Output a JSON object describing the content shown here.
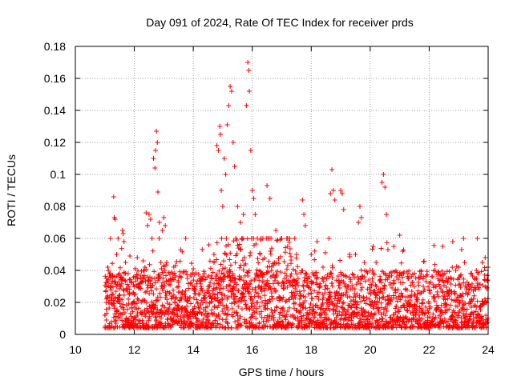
{
  "chart_data": {
    "type": "scatter",
    "title": "Day 091 of 2024, Rate Of TEC Index for receiver prds",
    "xlabel": "GPS time / hours",
    "ylabel": "ROTI / TECUs",
    "xlim": [
      10,
      24
    ],
    "ylim": [
      0,
      0.18
    ],
    "xticks": [
      10,
      12,
      14,
      16,
      18,
      20,
      22,
      24
    ],
    "yticks": [
      0,
      0.02,
      0.04,
      0.06,
      0.08,
      0.1,
      0.12,
      0.14,
      0.16,
      0.18
    ],
    "xtick_labels": [
      "10",
      "12",
      "14",
      "16",
      "18",
      "20",
      "22",
      "24"
    ],
    "ytick_labels": [
      "0",
      "0.02",
      "0.04",
      "0.06",
      "0.08",
      "0.1",
      "0.12",
      "0.14",
      "0.16",
      "0.18"
    ],
    "grid": true,
    "marker": "+",
    "marker_color": "#ff0000",
    "series": [
      {
        "name": "ROTI",
        "note": "dense scatter from 11.0 to 24.0 h; base band mostly 0.005-0.04, notable peaks listed",
        "points": [
          [
            11.0,
            0.012
          ],
          [
            11.05,
            0.035
          ],
          [
            11.1,
            0.042
          ],
          [
            11.15,
            0.02
          ],
          [
            11.2,
            0.03
          ],
          [
            11.3,
            0.086
          ],
          [
            11.32,
            0.073
          ],
          [
            11.35,
            0.072
          ],
          [
            11.4,
            0.05
          ],
          [
            11.5,
            0.038
          ],
          [
            11.6,
            0.065
          ],
          [
            11.62,
            0.063
          ],
          [
            11.65,
            0.058
          ],
          [
            11.7,
            0.045
          ],
          [
            11.8,
            0.03
          ],
          [
            12.0,
            0.025
          ],
          [
            12.1,
            0.048
          ],
          [
            12.2,
            0.032
          ],
          [
            12.3,
            0.046
          ],
          [
            12.4,
            0.076
          ],
          [
            12.45,
            0.068
          ],
          [
            12.5,
            0.075
          ],
          [
            12.55,
            0.072
          ],
          [
            12.6,
            0.06
          ],
          [
            12.65,
            0.11
          ],
          [
            12.7,
            0.104
          ],
          [
            12.72,
            0.115
          ],
          [
            12.75,
            0.127
          ],
          [
            12.78,
            0.12
          ],
          [
            12.8,
            0.089
          ],
          [
            12.85,
            0.07
          ],
          [
            12.9,
            0.045
          ],
          [
            12.95,
            0.065
          ],
          [
            13.0,
            0.073
          ],
          [
            13.05,
            0.068
          ],
          [
            13.1,
            0.045
          ],
          [
            13.3,
            0.035
          ],
          [
            13.5,
            0.03
          ],
          [
            13.8,
            0.035
          ],
          [
            14.0,
            0.041
          ],
          [
            14.2,
            0.025
          ],
          [
            14.5,
            0.03
          ],
          [
            14.7,
            0.05
          ],
          [
            14.8,
            0.118
          ],
          [
            14.85,
            0.115
          ],
          [
            14.9,
            0.13
          ],
          [
            14.92,
            0.125
          ],
          [
            14.95,
            0.09
          ],
          [
            15.0,
            0.08
          ],
          [
            15.05,
            0.11
          ],
          [
            15.1,
            0.1
          ],
          [
            15.15,
            0.131
          ],
          [
            15.2,
            0.143
          ],
          [
            15.25,
            0.155
          ],
          [
            15.3,
            0.152
          ],
          [
            15.35,
            0.12
          ],
          [
            15.4,
            0.105
          ],
          [
            15.5,
            0.08
          ],
          [
            15.6,
            0.07
          ],
          [
            15.7,
            0.075
          ],
          [
            15.8,
            0.143
          ],
          [
            15.85,
            0.17
          ],
          [
            15.88,
            0.165
          ],
          [
            15.9,
            0.152
          ],
          [
            15.95,
            0.115
          ],
          [
            16.0,
            0.09
          ],
          [
            16.05,
            0.085
          ],
          [
            16.1,
            0.075
          ],
          [
            16.3,
            0.06
          ],
          [
            16.5,
            0.093
          ],
          [
            16.6,
            0.085
          ],
          [
            16.8,
            0.065
          ],
          [
            17.0,
            0.06
          ],
          [
            17.2,
            0.055
          ],
          [
            17.5,
            0.05
          ],
          [
            17.7,
            0.084
          ],
          [
            17.75,
            0.075
          ],
          [
            17.8,
            0.068
          ],
          [
            18.0,
            0.05
          ],
          [
            18.2,
            0.058
          ],
          [
            18.4,
            0.042
          ],
          [
            18.5,
            0.03
          ],
          [
            18.6,
            0.06
          ],
          [
            18.65,
            0.088
          ],
          [
            18.7,
            0.103
          ],
          [
            18.75,
            0.09
          ],
          [
            18.8,
            0.084
          ],
          [
            19.0,
            0.09
          ],
          [
            19.05,
            0.088
          ],
          [
            19.1,
            0.078
          ],
          [
            19.3,
            0.05
          ],
          [
            19.5,
            0.05
          ],
          [
            19.6,
            0.07
          ],
          [
            19.65,
            0.08
          ],
          [
            19.7,
            0.073
          ],
          [
            19.8,
            0.045
          ],
          [
            20.0,
            0.04
          ],
          [
            20.1,
            0.055
          ],
          [
            20.2,
            0.045
          ],
          [
            20.4,
            0.095
          ],
          [
            20.45,
            0.1
          ],
          [
            20.5,
            0.092
          ],
          [
            20.55,
            0.075
          ],
          [
            20.6,
            0.053
          ],
          [
            20.8,
            0.055
          ],
          [
            21.0,
            0.062
          ],
          [
            21.1,
            0.052
          ],
          [
            21.3,
            0.035
          ],
          [
            21.5,
            0.025
          ],
          [
            21.8,
            0.03
          ],
          [
            22.0,
            0.032
          ],
          [
            22.2,
            0.04
          ],
          [
            22.4,
            0.034
          ],
          [
            22.6,
            0.035
          ],
          [
            22.8,
            0.058
          ],
          [
            22.9,
            0.04
          ],
          [
            23.0,
            0.042
          ],
          [
            23.1,
            0.053
          ],
          [
            23.2,
            0.045
          ],
          [
            23.4,
            0.038
          ],
          [
            23.6,
            0.04
          ],
          [
            23.8,
            0.045
          ],
          [
            23.9,
            0.048
          ],
          [
            24.0,
            0.042
          ]
        ],
        "baseline_band": {
          "x_range": [
            11.0,
            24.0
          ],
          "y_range": [
            0.004,
            0.04
          ]
        }
      }
    ]
  }
}
